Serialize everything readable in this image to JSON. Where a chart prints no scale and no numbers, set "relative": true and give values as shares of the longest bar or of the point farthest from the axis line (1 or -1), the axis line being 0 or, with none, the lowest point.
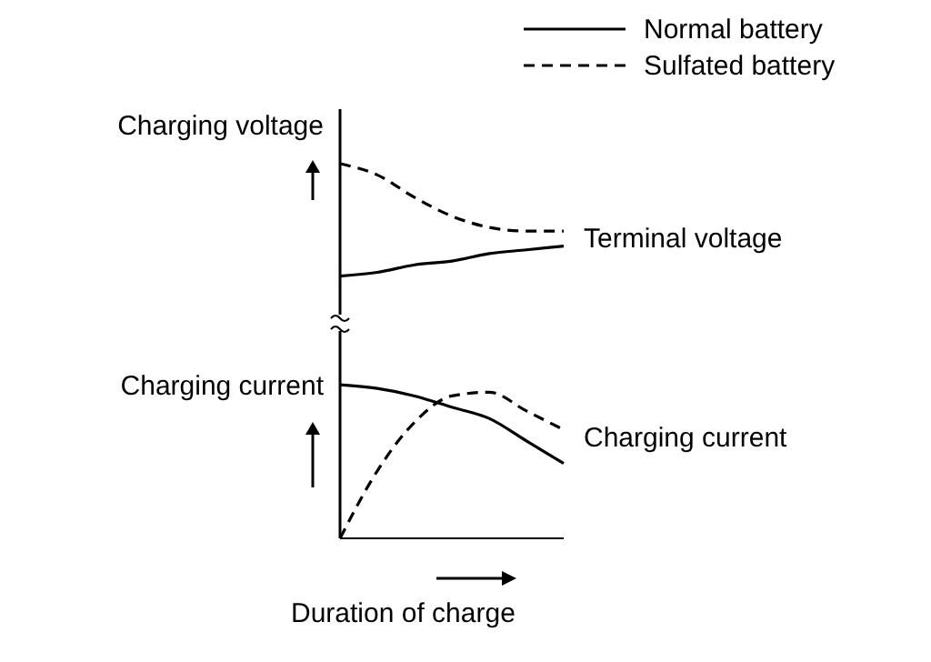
{
  "chart_data": {
    "type": "line",
    "relative": true,
    "xlabel": "Duration of charge",
    "categories": [
      null,
      null,
      null,
      null,
      null,
      null,
      null
    ],
    "series": [
      {
        "name": "Normal battery",
        "color": "#000000",
        "line_style": "solid",
        "values": [
          0.7,
          0.71,
          0.73,
          0.74,
          0.76,
          0.77,
          0.78
        ]
      },
      {
        "name": "Sulfated battery",
        "color": "#000000",
        "line_style": "dashed",
        "values": [
          1,
          0.97,
          0.91,
          0.86,
          0.83,
          0.82,
          0.82
        ]
      },
      {
        "color": "#000000",
        "line_style": "solid",
        "values": [
          0.41,
          0.4,
          0.38,
          0.35,
          0.32,
          0.26,
          0.2
        ]
      },
      {
        "color": "#000000",
        "line_style": "dashed",
        "values": [
          0,
          0.18,
          0.31,
          0.38,
          0.39,
          0.34,
          0.29
        ]
      }
    ],
    "annotations": [
      "Charging voltage",
      "Charging current",
      "Terminal voltage",
      "Charging current"
    ],
    "legend": "top right",
    "marker": "none",
    "grid": false
  }
}
